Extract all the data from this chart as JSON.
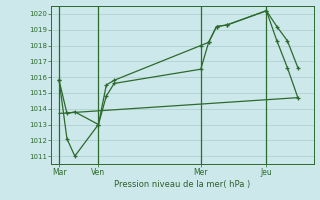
{
  "bg_color": "#cce8ea",
  "grid_color": "#aacccc",
  "line_color": "#2d6a2d",
  "marker_color": "#2d6a2d",
  "xlabel": "Pression niveau de la mer( hPa )",
  "xlabel_color": "#2d5f2d",
  "xlim": [
    0,
    100
  ],
  "ylim": [
    1010.5,
    1020.5
  ],
  "yticks": [
    1011,
    1012,
    1013,
    1014,
    1015,
    1016,
    1017,
    1018,
    1019,
    1020
  ],
  "xtick_labels": [
    "Mar",
    "Ven",
    "Mer",
    "Jeu"
  ],
  "xtick_positions": [
    3,
    18,
    57,
    82
  ],
  "vlines": [
    3,
    18,
    57,
    82
  ],
  "series1": {
    "x": [
      3,
      6,
      9,
      18,
      21,
      24,
      57,
      60,
      63,
      67,
      82,
      86,
      90,
      94
    ],
    "y": [
      1015.8,
      1013.7,
      1013.8,
      1013.0,
      1015.5,
      1015.8,
      1018.0,
      1018.2,
      1019.2,
      1019.3,
      1020.2,
      1019.2,
      1018.3,
      1016.6
    ]
  },
  "series2": {
    "x": [
      3,
      6,
      9,
      18,
      21,
      24,
      57,
      60,
      63,
      67,
      82,
      86,
      90,
      94
    ],
    "y": [
      1015.8,
      1012.1,
      1011.0,
      1013.0,
      1014.8,
      1015.6,
      1016.5,
      1018.2,
      1019.2,
      1019.3,
      1020.2,
      1018.3,
      1016.6,
      1014.7
    ]
  },
  "series3": {
    "x": [
      3,
      94
    ],
    "y": [
      1013.7,
      1014.7
    ]
  }
}
